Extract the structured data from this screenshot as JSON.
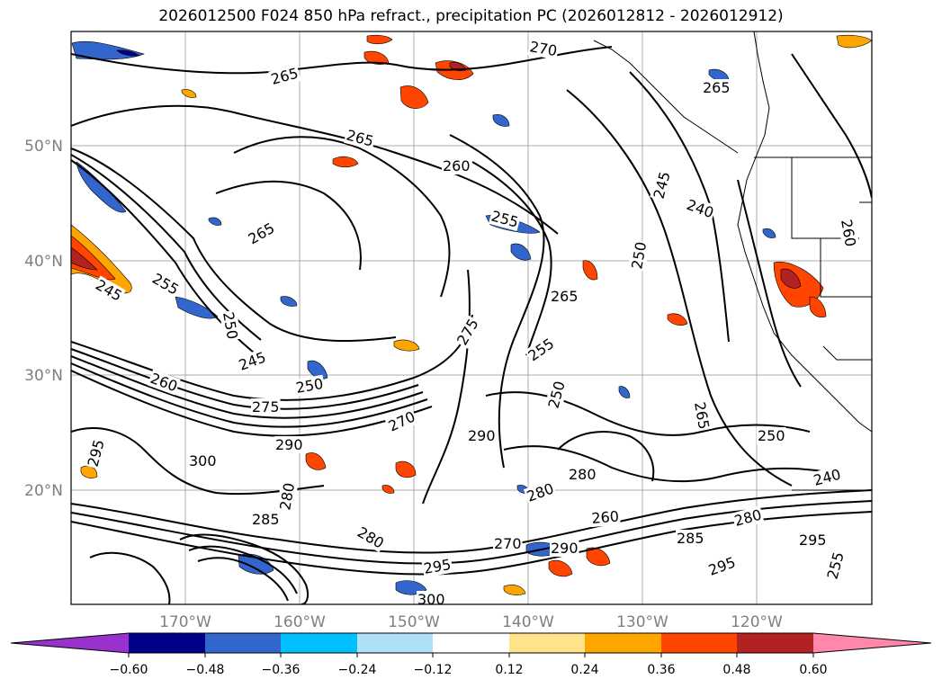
{
  "title": "2026012500 F024 850 hPa refract., precipitation PC (2026012812 - 2026012912)",
  "map": {
    "lon_labels": [
      "170°W",
      "160°W",
      "150°W",
      "140°W",
      "130°W",
      "120°W"
    ],
    "lat_labels": [
      "50°N",
      "40°N",
      "30°N",
      "20°N"
    ],
    "contour_labels": [
      "265",
      "265",
      "270",
      "265",
      "260",
      "255",
      "245",
      "240",
      "260",
      "265",
      "255",
      "250",
      "250",
      "260",
      "275",
      "250",
      "255",
      "245",
      "250",
      "265",
      "265",
      "250",
      "275",
      "290",
      "300",
      "280",
      "280",
      "295",
      "290",
      "285",
      "285",
      "280",
      "270",
      "270",
      "280",
      "260",
      "290",
      "295",
      "300",
      "245",
      "240",
      "295",
      "280",
      "295",
      "255"
    ]
  },
  "colorbar": {
    "ticks": [
      "−0.60",
      "−0.48",
      "−0.36",
      "−0.24",
      "−0.12",
      "0.12",
      "0.24",
      "0.36",
      "0.48",
      "0.60"
    ],
    "colors": [
      "#9932cc",
      "#00008b",
      "#3366cc",
      "#00bfff",
      "#b0e0f8",
      "#ffffff",
      "#ffe38a",
      "#ffa500",
      "#ff4500",
      "#b22222",
      "#ff88aa"
    ]
  }
}
